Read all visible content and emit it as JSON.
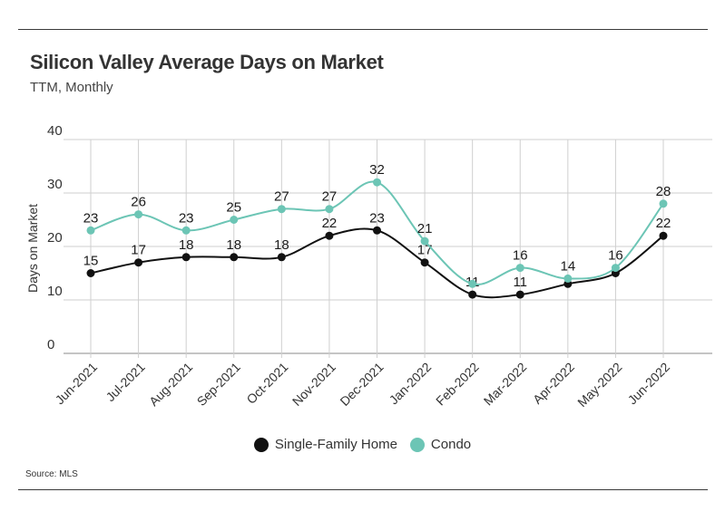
{
  "header": {
    "title": "Silicon Valley Average Days on Market",
    "subtitle": "TTM, Monthly"
  },
  "footer": {
    "source": "Source:  MLS"
  },
  "colors": {
    "single_family": "#111111",
    "condo": "#6cc5b5",
    "grid": "#cfcfcf"
  },
  "chart_data": {
    "type": "line",
    "title": "Silicon Valley Average Days on Market",
    "subtitle": "TTM, Monthly",
    "xlabel": "",
    "ylabel": "Days on Market",
    "ylim": [
      0,
      40
    ],
    "yticks": [
      0,
      10,
      20,
      30,
      40
    ],
    "grid": true,
    "legend_position": "bottom-center",
    "categories": [
      "Jun-2021",
      "Jul-2021",
      "Aug-2021",
      "Sep-2021",
      "Oct-2021",
      "Nov-2021",
      "Dec-2021",
      "Jan-2022",
      "Feb-2022",
      "Mar-2022",
      "Apr-2022",
      "May-2022",
      "Jun-2022"
    ],
    "series": [
      {
        "name": "Single-Family Home",
        "color": "#111111",
        "values": [
          15,
          17,
          18,
          18,
          18,
          22,
          23,
          17,
          11,
          11,
          13,
          15,
          22
        ],
        "labels": [
          "15",
          "17",
          "18",
          "18",
          "18",
          "22",
          "23",
          "17",
          "11",
          "11",
          "",
          "",
          "22"
        ]
      },
      {
        "name": "Condo",
        "color": "#6cc5b5",
        "values": [
          23,
          26,
          23,
          25,
          27,
          27,
          32,
          21,
          13,
          16,
          14,
          16,
          28
        ],
        "labels": [
          "23",
          "26",
          "23",
          "25",
          "27",
          "27",
          "32",
          "21",
          "",
          "16",
          "14",
          "16",
          "28"
        ]
      }
    ]
  }
}
